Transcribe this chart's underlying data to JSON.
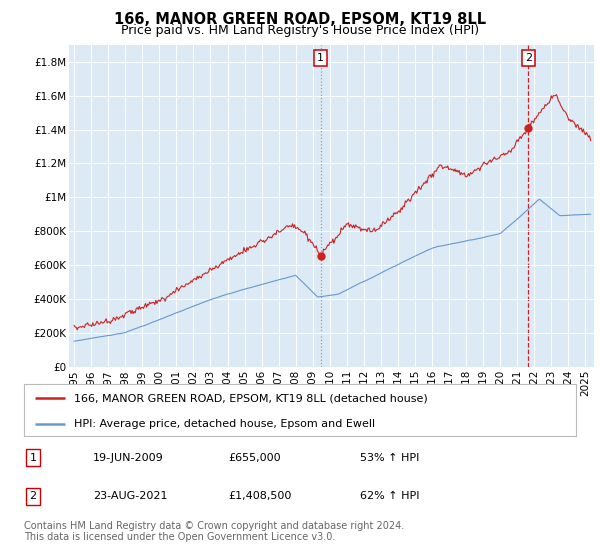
{
  "title": "166, MANOR GREEN ROAD, EPSOM, KT19 8LL",
  "subtitle": "Price paid vs. HM Land Registry's House Price Index (HPI)",
  "background_color": "#ffffff",
  "plot_bg_color": "#dceaf5",
  "grid_color": "#ffffff",
  "ylim": [
    0,
    1900000
  ],
  "yticks": [
    0,
    200000,
    400000,
    600000,
    800000,
    1000000,
    1200000,
    1400000,
    1600000,
    1800000
  ],
  "ytick_labels": [
    "£0",
    "£200K",
    "£400K",
    "£600K",
    "£800K",
    "£1M",
    "£1.2M",
    "£1.4M",
    "£1.6M",
    "£1.8M"
  ],
  "xticks": [
    1995,
    1996,
    1997,
    1998,
    1999,
    2000,
    2001,
    2002,
    2003,
    2004,
    2005,
    2006,
    2007,
    2008,
    2009,
    2010,
    2011,
    2012,
    2013,
    2014,
    2015,
    2016,
    2017,
    2018,
    2019,
    2020,
    2021,
    2022,
    2023,
    2024,
    2025
  ],
  "sale1_x": 2009.47,
  "sale1_y": 655000,
  "sale1_label": "1",
  "sale1_line_color": "#888888",
  "sale1_line_style": "dotted",
  "sale2_x": 2021.64,
  "sale2_y": 1408500,
  "sale2_label": "2",
  "sale2_line_color": "#cc0000",
  "sale2_line_style": "dashed",
  "red_line_color": "#cc2222",
  "blue_line_color": "#6699cc",
  "dot_color": "#cc2222",
  "legend_line1": "166, MANOR GREEN ROAD, EPSOM, KT19 8LL (detached house)",
  "legend_line2": "HPI: Average price, detached house, Epsom and Ewell",
  "table_row1": [
    "1",
    "19-JUN-2009",
    "£655,000",
    "53% ↑ HPI"
  ],
  "table_row2": [
    "2",
    "23-AUG-2021",
    "£1,408,500",
    "62% ↑ HPI"
  ],
  "footnote": "Contains HM Land Registry data © Crown copyright and database right 2024.\nThis data is licensed under the Open Government Licence v3.0.",
  "title_fontsize": 10.5,
  "subtitle_fontsize": 9,
  "tick_fontsize": 7.5,
  "legend_fontsize": 8,
  "table_fontsize": 8,
  "footnote_fontsize": 7
}
